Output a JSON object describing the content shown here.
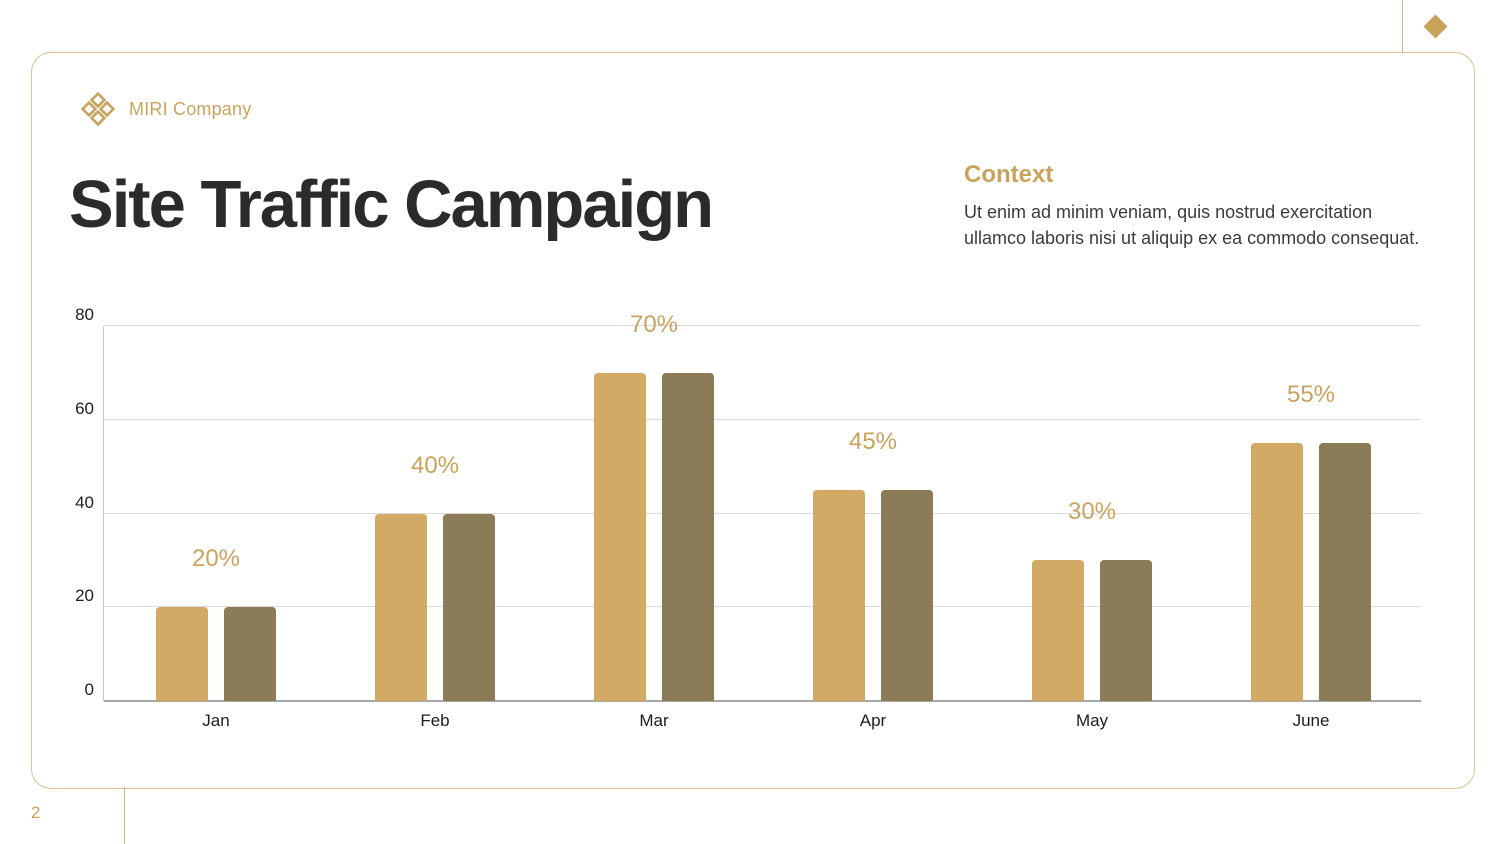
{
  "page": {
    "number": "2"
  },
  "brand": {
    "name": "MIRI Company",
    "accent": "#c9a35c"
  },
  "header": {
    "title": "Site Traffic Campaign"
  },
  "context": {
    "heading": "Context",
    "body": "Ut enim ad minim veniam, quis nostrud exercitation ullamco laboris nisi ut aliquip ex ea commodo consequat."
  },
  "chart_data": {
    "type": "bar",
    "title": "",
    "categories": [
      "Jan",
      "Feb",
      "Mar",
      "Apr",
      "May",
      "June"
    ],
    "series": [
      {
        "name": "campaign-primary",
        "color": "#d3a966",
        "values": [
          20,
          40,
          70,
          45,
          30,
          55
        ]
      },
      {
        "name": "campaign-secondary",
        "color": "#8b7c57",
        "values": [
          20,
          40,
          70,
          45,
          30,
          55
        ]
      }
    ],
    "value_labels": [
      "20%",
      "40%",
      "70%",
      "45%",
      "30%",
      "55%"
    ],
    "yticks": [
      0,
      20,
      40,
      60,
      80
    ],
    "ylim": [
      0,
      80
    ],
    "xlabel": "",
    "ylabel": "",
    "grid": "horizontal",
    "legend": "none",
    "label_color": "#c9a35c"
  }
}
